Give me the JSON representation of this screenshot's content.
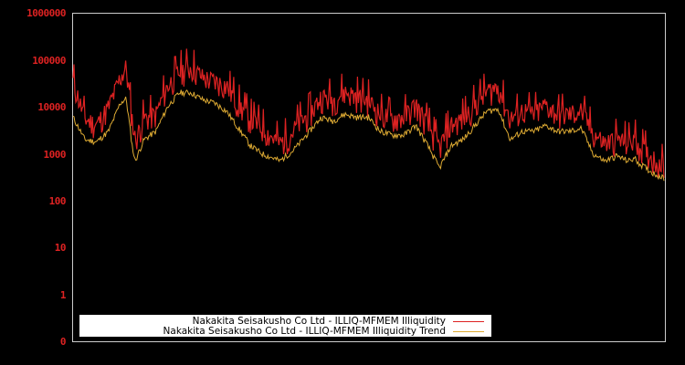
{
  "chart_data": {
    "type": "line",
    "title": "",
    "xlabel": "",
    "ylabel": "",
    "yscale": "log",
    "ylim": [
      0,
      1000000
    ],
    "y_ticks": [
      "1000000",
      "100000",
      "10000",
      "1000",
      "100",
      "10",
      "1",
      "0"
    ],
    "x_ticks": [],
    "grid": false,
    "legend_position": "lower-left",
    "series": [
      {
        "name": "Nakakita Seisakusho Co Ltd - ILLIQ-MFMEM Illiquidity",
        "color": "#dd2222",
        "x": [
          0,
          0.02,
          0.04,
          0.06,
          0.08,
          0.09,
          0.1,
          0.105,
          0.11,
          0.12,
          0.14,
          0.16,
          0.18,
          0.2,
          0.22,
          0.24,
          0.26,
          0.28,
          0.3,
          0.32,
          0.34,
          0.35,
          0.36,
          0.37,
          0.38,
          0.4,
          0.42,
          0.44,
          0.46,
          0.48,
          0.5,
          0.52,
          0.54,
          0.56,
          0.58,
          0.6,
          0.62,
          0.64,
          0.66,
          0.68,
          0.7,
          0.72,
          0.73,
          0.74,
          0.76,
          0.78,
          0.8,
          0.82,
          0.84,
          0.86,
          0.88,
          0.9,
          0.92,
          0.94,
          0.95,
          0.96,
          0.98,
          1.0
        ],
        "values": [
          25000,
          4000,
          3000,
          7000,
          30000,
          50000,
          4000,
          1500,
          2000,
          4000,
          5000,
          20000,
          40000,
          50000,
          30000,
          25000,
          20000,
          8000,
          4000,
          2500,
          1500,
          1200,
          1500,
          2000,
          3000,
          5000,
          12000,
          10000,
          15000,
          12000,
          10000,
          5000,
          4000,
          4500,
          8000,
          3000,
          1000,
          3000,
          4000,
          8000,
          15000,
          20000,
          8000,
          4000,
          6000,
          5000,
          8000,
          5000,
          5000,
          6000,
          2000,
          1200,
          1500,
          1200,
          1500,
          1000,
          600,
          400
        ]
      },
      {
        "name": "Nakakita Seisakusho Co Ltd - ILLIQ-MFMEM Illiquidity Trend",
        "color": "#ddaa33",
        "x": [
          0,
          0.02,
          0.04,
          0.06,
          0.08,
          0.09,
          0.1,
          0.105,
          0.11,
          0.12,
          0.14,
          0.16,
          0.18,
          0.2,
          0.22,
          0.24,
          0.26,
          0.28,
          0.3,
          0.32,
          0.34,
          0.35,
          0.36,
          0.37,
          0.38,
          0.4,
          0.42,
          0.44,
          0.46,
          0.48,
          0.5,
          0.52,
          0.54,
          0.56,
          0.58,
          0.6,
          0.62,
          0.64,
          0.66,
          0.68,
          0.7,
          0.72,
          0.73,
          0.74,
          0.76,
          0.78,
          0.8,
          0.82,
          0.84,
          0.86,
          0.88,
          0.9,
          0.92,
          0.94,
          0.95,
          0.96,
          0.98,
          1.0
        ],
        "values": [
          6000,
          2000,
          1800,
          3000,
          12000,
          15000,
          1500,
          700,
          1000,
          2000,
          3000,
          10000,
          20000,
          20000,
          14000,
          12000,
          8000,
          3500,
          1500,
          1000,
          800,
          700,
          900,
          1100,
          1500,
          3000,
          6000,
          5000,
          7000,
          6000,
          6000,
          3000,
          2500,
          2500,
          4000,
          1500,
          500,
          1500,
          2000,
          4000,
          8000,
          9000,
          4000,
          2000,
          3000,
          3000,
          4000,
          3000,
          3000,
          3500,
          1000,
          700,
          900,
          700,
          800,
          600,
          400,
          300
        ]
      }
    ]
  },
  "legend": {
    "items": [
      {
        "label": "Nakakita Seisakusho Co Ltd - ILLIQ-MFMEM Illiquidity",
        "color": "#dd2222"
      },
      {
        "label": "Nakakita Seisakusho Co Ltd - ILLIQ-MFMEM Illiquidity Trend",
        "color": "#ddaa33"
      }
    ]
  },
  "axis": {
    "y_labels": [
      "1000000",
      "100000",
      "10000",
      "1000",
      "100",
      "10",
      "1",
      "0"
    ]
  }
}
